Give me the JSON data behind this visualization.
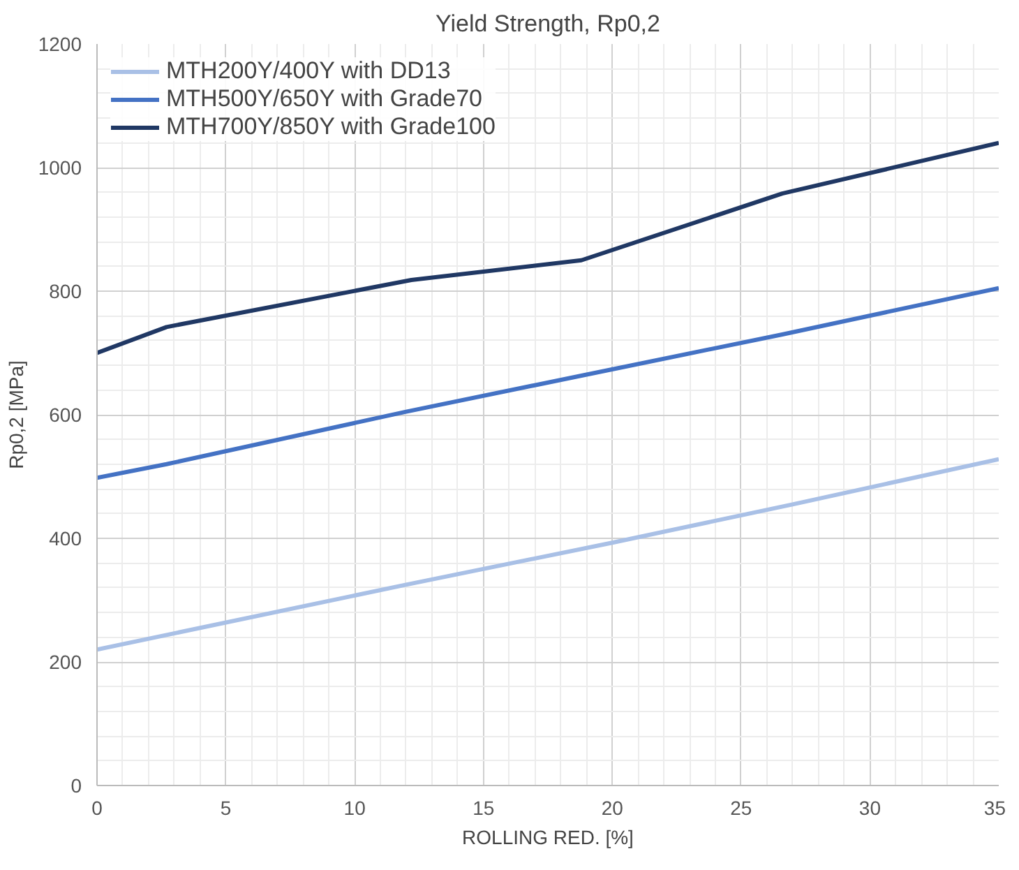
{
  "chart_data": {
    "type": "line",
    "title": "Yield Strength, Rp0,2",
    "xlabel": "ROLLING RED. [%]",
    "ylabel": "Rp0,2 [MPa]",
    "xlim": [
      0,
      35
    ],
    "xticks": [
      0,
      5,
      10,
      15,
      20,
      25,
      30,
      35
    ],
    "ylim": [
      0,
      1200
    ],
    "yticks": [
      0,
      200,
      400,
      600,
      800,
      1000,
      1200
    ],
    "grid": true,
    "legend": "top left",
    "marker": "none",
    "line_style": "solid",
    "series": [
      {
        "name": "MTH200Y/400Y with DD13",
        "color": "#a9c0e6",
        "x": [
          0,
          12,
          20,
          27,
          35
        ],
        "values": [
          220,
          325,
          393,
          455,
          528
        ]
      },
      {
        "name": "MTH500Y/650Y with Grade70",
        "color": "#4472c4",
        "x": [
          0,
          2.7,
          12,
          19,
          26.6,
          35
        ],
        "values": [
          498,
          520,
          605,
          665,
          730,
          805
        ]
      },
      {
        "name": "MTH700Y/850Y with Grade100",
        "color": "#203864",
        "x": [
          0,
          2.7,
          12.2,
          18.8,
          26.6,
          35
        ],
        "values": [
          700,
          742,
          818,
          850,
          958,
          1040
        ]
      }
    ]
  }
}
